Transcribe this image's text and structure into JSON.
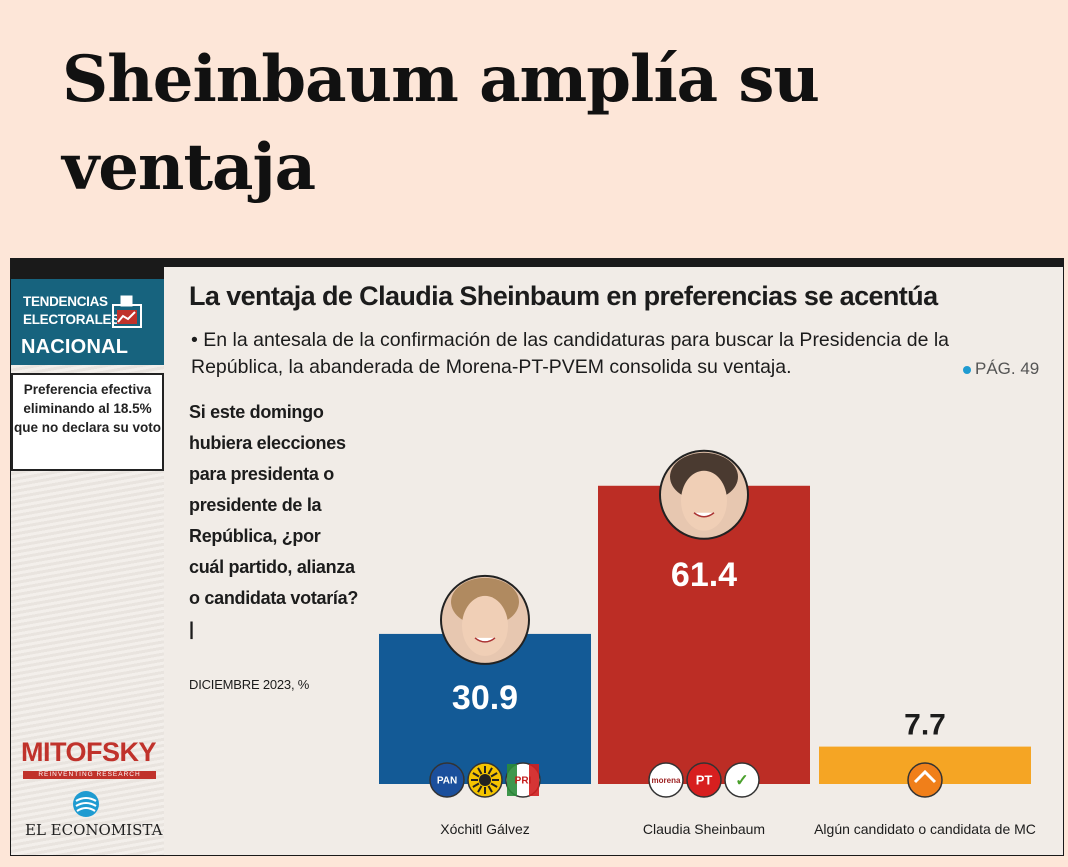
{
  "headline": "Sheinbaum amplía su ventaja",
  "sidebar": {
    "badge_line1": "TENDENCIAS",
    "badge_line2": "ELECTORALES",
    "badge_line3": "NACIONAL",
    "note": "Preferencia efectiva eliminando al 18.5% que no declara su voto",
    "logo": "MITOFSKY",
    "logo_sub": "REINVENTING RESEARCH",
    "publisher": "EL ECONOMISTA"
  },
  "infographic": {
    "title": "La ventaja de Claudia Sheinbaum en preferencias se acentúa",
    "description": "• En la antesala de la confirmación de las candidaturas para buscar la Presidencia de la República, la abanderada de Morena-PT-PVEM consolida su ventaja.",
    "page_ref": "PÁG. 49",
    "question": "Si este domingo hubiera elecciones para presidenta o presidente de la República, ¿por cuál partido, alianza o candidata votaría? |",
    "date": "DICIEMBRE 2023, %"
  },
  "colors": {
    "pan": "#135a96",
    "morena": "#bc2d25",
    "mc": "#f5a524",
    "sidebar": "#17637e"
  },
  "chart_data": {
    "type": "bar",
    "title": "La ventaja de Claudia Sheinbaum en preferencias se acentúa",
    "ylabel": "%",
    "ylim": [
      0,
      70
    ],
    "categories": [
      "Xóchitl Gálvez",
      "Claudia Sheinbaum",
      "Algún candidato o candidata de MC"
    ],
    "values": [
      30.9,
      61.4,
      7.7
    ],
    "value_labels": [
      "30.9",
      "61.4",
      "7.7"
    ],
    "parties": [
      [
        "PAN",
        "PRD",
        "PRI"
      ],
      [
        "morena",
        "PT",
        "VERDE"
      ],
      [
        "MC"
      ]
    ],
    "colors": [
      "#135a96",
      "#bc2d25",
      "#f5a524"
    ]
  }
}
